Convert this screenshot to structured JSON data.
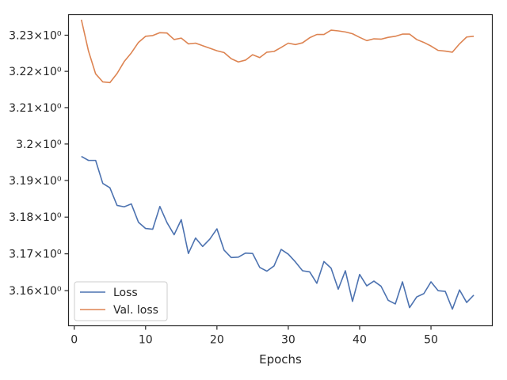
{
  "chart_data": {
    "type": "line",
    "title": "",
    "xlabel": "Epochs",
    "ylabel": "",
    "xlim": [
      -0.8,
      58.6
    ],
    "ylim": [
      3.1505,
      3.2357
    ],
    "x_ticks": [
      0,
      10,
      20,
      30,
      40,
      50
    ],
    "x_tick_labels": [
      "0",
      "10",
      "20",
      "30",
      "40",
      "50"
    ],
    "y_ticks": [
      3.16,
      3.17,
      3.18,
      3.19,
      3.2,
      3.21,
      3.22,
      3.23
    ],
    "y_tick_labels": [
      "3.16×10⁰",
      "3.17×10⁰",
      "3.18×10⁰",
      "3.19×10⁰",
      "3.2×10⁰",
      "3.21×10⁰",
      "3.22×10⁰",
      "3.23×10⁰"
    ],
    "y_scale": "log",
    "grid": false,
    "legend_position": "lower-left",
    "x": [
      1,
      2,
      3,
      4,
      5,
      6,
      7,
      8,
      9,
      10,
      11,
      12,
      13,
      14,
      15,
      16,
      17,
      18,
      19,
      20,
      21,
      22,
      23,
      24,
      25,
      26,
      27,
      28,
      29,
      30,
      31,
      32,
      33,
      34,
      35,
      36,
      37,
      38,
      39,
      40,
      41,
      42,
      43,
      44,
      45,
      46,
      47,
      48,
      49,
      50,
      51,
      52,
      53,
      54,
      55,
      56
    ],
    "series": [
      {
        "name": "Loss",
        "color": "#4c72b0",
        "values": [
          3.1966,
          3.1955,
          3.1955,
          3.1892,
          3.188,
          3.1832,
          3.1828,
          3.1836,
          3.1786,
          3.1769,
          3.1767,
          3.1829,
          3.1785,
          3.1752,
          3.1793,
          3.1701,
          3.1743,
          3.172,
          3.174,
          3.1768,
          3.171,
          3.169,
          3.1691,
          3.1702,
          3.1701,
          3.1663,
          3.1653,
          3.1667,
          3.1712,
          3.1699,
          3.1678,
          3.1654,
          3.1651,
          3.162,
          3.1679,
          3.1661,
          3.1604,
          3.1654,
          3.1571,
          3.1644,
          3.1613,
          3.1626,
          3.1612,
          3.1574,
          3.1564,
          3.1624,
          3.1554,
          3.1583,
          3.1592,
          3.1624,
          3.16,
          3.1598,
          3.155,
          3.1602,
          3.1568,
          3.1588
        ]
      },
      {
        "name": "Val. loss",
        "color": "#dd8452",
        "values": [
          3.2343,
          3.2256,
          3.2193,
          3.2171,
          3.2169,
          3.2194,
          3.2227,
          3.2251,
          3.228,
          3.2297,
          3.2299,
          3.2307,
          3.2306,
          3.2288,
          3.2292,
          3.2276,
          3.2278,
          3.2271,
          3.2264,
          3.2257,
          3.2252,
          3.2235,
          3.2226,
          3.2231,
          3.2246,
          3.2238,
          3.2253,
          3.2255,
          3.2266,
          3.2278,
          3.2274,
          3.2279,
          3.2293,
          3.2302,
          3.2302,
          3.2314,
          3.2312,
          3.2309,
          3.2304,
          3.2294,
          3.2285,
          3.229,
          3.2289,
          3.2294,
          3.2297,
          3.2303,
          3.2303,
          3.2288,
          3.228,
          3.227,
          3.2258,
          3.2256,
          3.2253,
          3.2276,
          3.2295,
          3.2297
        ]
      }
    ]
  }
}
